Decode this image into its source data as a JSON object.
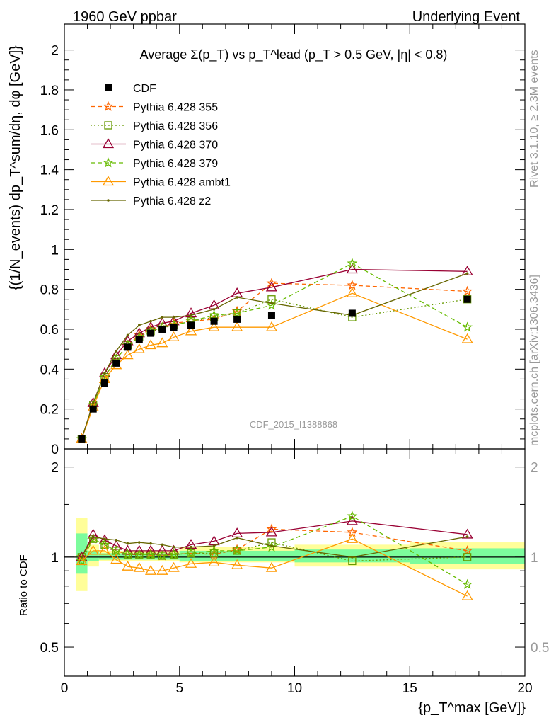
{
  "header": {
    "left": "1960 GeV ppbar",
    "right": "Underlying Event"
  },
  "side_labels": {
    "rivet": "Rivet 3.1.10, ≥ 2.3M events",
    "mcplots": "mcplots.cern.ch [arXiv:1306.3436]"
  },
  "chart_data": [
    {
      "type": "line",
      "title": "Average Σ(p_T) vs p_T^lead (p_T > 0.5 GeV, |η| < 0.8)",
      "ylabel": "{(1/N_events) dp_T^sum/dη, dφ [GeV]}",
      "xlabel": "{p_T^max [GeV]}",
      "watermark": "CDF_2015_I1388868",
      "xlim": [
        0,
        20
      ],
      "ylim": [
        0,
        2.13
      ],
      "yticks": [
        "0",
        "0.2",
        "0.4",
        "0.6",
        "0.8",
        "1",
        "1.2",
        "1.4",
        "1.6",
        "1.8",
        "2"
      ],
      "xticks": [
        "0",
        "5",
        "10",
        "15",
        "20"
      ],
      "legend_position": "top-left",
      "data": {
        "name": "CDF",
        "x": [
          0.75,
          1.25,
          1.75,
          2.25,
          2.75,
          3.25,
          3.75,
          4.25,
          4.75,
          5.5,
          6.5,
          7.5,
          9.0,
          12.5,
          17.5
        ],
        "y": [
          0.05,
          0.2,
          0.33,
          0.43,
          0.51,
          0.55,
          0.58,
          0.6,
          0.61,
          0.62,
          0.64,
          0.65,
          0.67,
          0.68,
          0.75
        ]
      },
      "series": [
        {
          "name": "Pythia 6.428 355",
          "color": "#ff6600",
          "marker": "star",
          "dash": "dashed",
          "y": [
            0.05,
            0.22,
            0.36,
            0.45,
            0.52,
            0.57,
            0.6,
            0.61,
            0.63,
            0.64,
            0.65,
            0.69,
            0.83,
            0.82,
            0.79
          ]
        },
        {
          "name": "Pythia 6.428 356",
          "color": "#669900",
          "marker": "open-square",
          "dash": "dotted",
          "y": [
            0.05,
            0.22,
            0.36,
            0.45,
            0.52,
            0.56,
            0.59,
            0.61,
            0.62,
            0.64,
            0.66,
            0.68,
            0.75,
            0.66,
            0.75
          ]
        },
        {
          "name": "Pythia 6.428 370",
          "color": "#990033",
          "marker": "open-triangle",
          "dash": "solid",
          "y": [
            0.05,
            0.23,
            0.38,
            0.47,
            0.54,
            0.58,
            0.61,
            0.63,
            0.64,
            0.68,
            0.72,
            0.78,
            0.81,
            0.9,
            0.89
          ]
        },
        {
          "name": "Pythia 6.428 379",
          "color": "#66bb00",
          "marker": "star",
          "dash": "dashed",
          "y": [
            0.05,
            0.22,
            0.36,
            0.45,
            0.52,
            0.56,
            0.59,
            0.61,
            0.62,
            0.64,
            0.67,
            0.68,
            0.72,
            0.93,
            0.61
          ]
        },
        {
          "name": "Pythia 6.428 ambt1",
          "color": "#ff9900",
          "marker": "open-triangle",
          "dash": "solid",
          "y": [
            0.05,
            0.21,
            0.35,
            0.42,
            0.47,
            0.5,
            0.52,
            0.53,
            0.56,
            0.59,
            0.61,
            0.61,
            0.61,
            0.78,
            0.55
          ]
        },
        {
          "name": "Pythia 6.428 z2",
          "color": "#666600",
          "marker": "dot",
          "dash": "solid",
          "y": [
            0.05,
            0.23,
            0.38,
            0.49,
            0.57,
            0.62,
            0.64,
            0.66,
            0.66,
            0.67,
            0.7,
            0.76,
            0.73,
            0.67,
            0.88
          ]
        }
      ]
    },
    {
      "type": "line",
      "ylabel": "Ratio to CDF",
      "ylim": [
        0.4,
        2.3
      ],
      "yscale": "log",
      "yticks": [
        "0.5",
        "1",
        "2"
      ],
      "x": [
        0.75,
        1.25,
        1.75,
        2.25,
        2.75,
        3.25,
        3.75,
        4.25,
        4.75,
        5.5,
        6.5,
        7.5,
        9.0,
        12.5,
        17.5
      ],
      "series": [
        {
          "name": "Pythia 6.428 355",
          "y": [
            1.0,
            1.15,
            1.1,
            1.05,
            1.02,
            1.02,
            1.03,
            1.01,
            1.02,
            1.03,
            1.02,
            1.06,
            1.24,
            1.21,
            1.05
          ]
        },
        {
          "name": "Pythia 6.428 356",
          "y": [
            1.0,
            1.15,
            1.1,
            1.05,
            1.02,
            1.02,
            1.02,
            1.01,
            1.02,
            1.03,
            1.03,
            1.05,
            1.12,
            0.97,
            1.0
          ]
        },
        {
          "name": "Pythia 6.428 370",
          "y": [
            1.0,
            1.19,
            1.14,
            1.09,
            1.05,
            1.05,
            1.05,
            1.05,
            1.05,
            1.1,
            1.13,
            1.2,
            1.21,
            1.32,
            1.19
          ]
        },
        {
          "name": "Pythia 6.428 379",
          "y": [
            0.97,
            1.15,
            1.1,
            1.05,
            1.02,
            1.02,
            1.02,
            1.01,
            1.02,
            1.03,
            1.05,
            1.05,
            1.08,
            1.37,
            0.81
          ]
        },
        {
          "name": "Pythia 6.428 ambt1",
          "y": [
            0.97,
            1.05,
            1.05,
            0.98,
            0.93,
            0.92,
            0.9,
            0.9,
            0.92,
            0.95,
            0.96,
            0.94,
            0.92,
            1.15,
            0.74
          ]
        },
        {
          "name": "Pythia 6.428 z2",
          "y": [
            1.0,
            1.17,
            1.15,
            1.14,
            1.11,
            1.12,
            1.11,
            1.1,
            1.08,
            1.08,
            1.09,
            1.16,
            1.09,
            1.0,
            1.17
          ]
        }
      ],
      "bands": {
        "inner_color": "#7cfc9c",
        "outer_color": "#fffe99"
      }
    }
  ]
}
